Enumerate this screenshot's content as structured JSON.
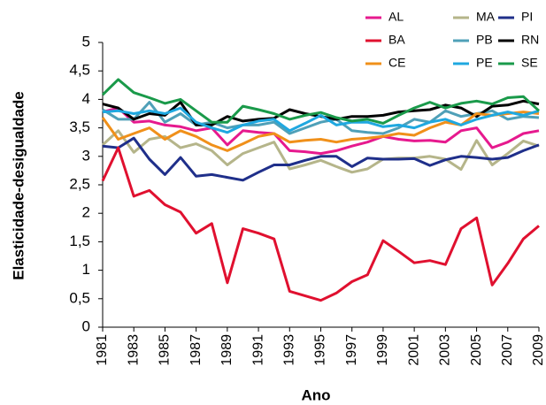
{
  "chart_data": {
    "type": "line",
    "x_label": "Ano",
    "y_label": "Elasticidade-desigualdade",
    "x": [
      1981,
      1982,
      1983,
      1984,
      1985,
      1986,
      1987,
      1988,
      1989,
      1990,
      1991,
      1992,
      1993,
      1994,
      1995,
      1996,
      1997,
      1998,
      1999,
      2000,
      2001,
      2002,
      2003,
      2004,
      2005,
      2006,
      2007,
      2008,
      2009
    ],
    "xlim": [
      1981,
      2009
    ],
    "xticks": [
      1981,
      1983,
      1985,
      1987,
      1989,
      1991,
      1993,
      1995,
      1997,
      1999,
      2001,
      2003,
      2005,
      2007,
      2009
    ],
    "ylim": [
      0,
      5
    ],
    "yticks": [
      0,
      {
        "value": 0.5,
        "label": "0,5"
      },
      1,
      {
        "value": 1.5,
        "label": "1,5"
      },
      2,
      {
        "value": 2.5,
        "label": "2,5"
      },
      3,
      {
        "value": 3.5,
        "label": "3,5"
      },
      4,
      {
        "value": 4.5,
        "label": "4,5"
      },
      5
    ],
    "series": [
      {
        "name": "AL",
        "color": "#e6198e",
        "values": [
          3.78,
          3.85,
          3.6,
          3.62,
          3.55,
          3.52,
          3.45,
          3.5,
          3.2,
          3.45,
          3.42,
          3.4,
          3.1,
          3.08,
          3.05,
          3.1,
          3.18,
          3.25,
          3.35,
          3.3,
          3.27,
          3.28,
          3.25,
          3.45,
          3.5,
          3.15,
          3.25,
          3.4,
          3.45
        ]
      },
      {
        "name": "MA",
        "color": "#b5b58a",
        "values": [
          3.2,
          3.45,
          3.07,
          3.3,
          3.35,
          3.15,
          3.22,
          3.1,
          2.85,
          3.05,
          3.15,
          3.25,
          2.78,
          2.85,
          2.93,
          2.82,
          2.72,
          2.78,
          2.95,
          2.97,
          2.97,
          3.0,
          2.95,
          2.77,
          3.28,
          2.85,
          3.05,
          3.27,
          3.18
        ]
      },
      {
        "name": "PI",
        "color": "#1f2f8a",
        "values": [
          3.18,
          3.15,
          3.32,
          2.95,
          2.68,
          2.98,
          2.65,
          2.68,
          2.63,
          2.58,
          2.72,
          2.85,
          2.85,
          2.93,
          3.0,
          3.0,
          2.82,
          2.97,
          2.95,
          2.95,
          2.96,
          2.84,
          2.94,
          3.0,
          2.98,
          2.95,
          2.98,
          3.1,
          3.2
        ]
      },
      {
        "name": "BA",
        "color": "#e0102f",
        "values": [
          2.57,
          3.15,
          2.3,
          2.4,
          2.15,
          2.02,
          1.65,
          1.82,
          0.78,
          1.73,
          1.65,
          1.55,
          0.63,
          0.55,
          0.47,
          0.6,
          0.8,
          0.92,
          1.52,
          1.33,
          1.13,
          1.17,
          1.1,
          1.73,
          1.92,
          0.74,
          1.12,
          1.55,
          1.78
        ]
      },
      {
        "name": "PB",
        "color": "#4fa0b8",
        "values": [
          3.82,
          3.65,
          3.65,
          3.95,
          3.6,
          3.75,
          3.55,
          3.6,
          3.5,
          3.55,
          3.55,
          3.6,
          3.4,
          3.5,
          3.6,
          3.65,
          3.45,
          3.42,
          3.4,
          3.5,
          3.65,
          3.6,
          3.8,
          3.7,
          3.75,
          3.8,
          3.65,
          3.7,
          3.68
        ]
      },
      {
        "name": "RN",
        "color": "#000000",
        "values": [
          3.92,
          3.85,
          3.65,
          3.75,
          3.72,
          3.95,
          3.55,
          3.55,
          3.7,
          3.62,
          3.65,
          3.67,
          3.82,
          3.75,
          3.7,
          3.65,
          3.7,
          3.7,
          3.72,
          3.78,
          3.8,
          3.82,
          3.9,
          3.85,
          3.7,
          3.88,
          3.9,
          3.97,
          3.92
        ]
      },
      {
        "name": "CE",
        "color": "#f0901a",
        "values": [
          3.68,
          3.3,
          3.4,
          3.5,
          3.3,
          3.45,
          3.35,
          3.2,
          3.1,
          3.22,
          3.35,
          3.4,
          3.25,
          3.28,
          3.3,
          3.25,
          3.3,
          3.32,
          3.35,
          3.4,
          3.37,
          3.5,
          3.6,
          3.55,
          3.75,
          3.72,
          3.75,
          3.78,
          3.75
        ]
      },
      {
        "name": "PE",
        "color": "#1fa8e0",
        "values": [
          3.78,
          3.8,
          3.75,
          3.8,
          3.75,
          3.85,
          3.6,
          3.5,
          3.42,
          3.55,
          3.62,
          3.65,
          3.45,
          3.58,
          3.72,
          3.55,
          3.6,
          3.6,
          3.52,
          3.55,
          3.5,
          3.6,
          3.65,
          3.55,
          3.65,
          3.72,
          3.78,
          3.72,
          3.8
        ]
      },
      {
        "name": "SE",
        "color": "#1a9a4a",
        "values": [
          4.08,
          4.35,
          4.12,
          4.03,
          3.93,
          4.0,
          3.8,
          3.6,
          3.6,
          3.88,
          3.82,
          3.75,
          3.65,
          3.72,
          3.77,
          3.68,
          3.62,
          3.65,
          3.58,
          3.72,
          3.85,
          3.95,
          3.85,
          3.93,
          3.97,
          3.92,
          4.03,
          4.05,
          3.8
        ]
      }
    ]
  }
}
